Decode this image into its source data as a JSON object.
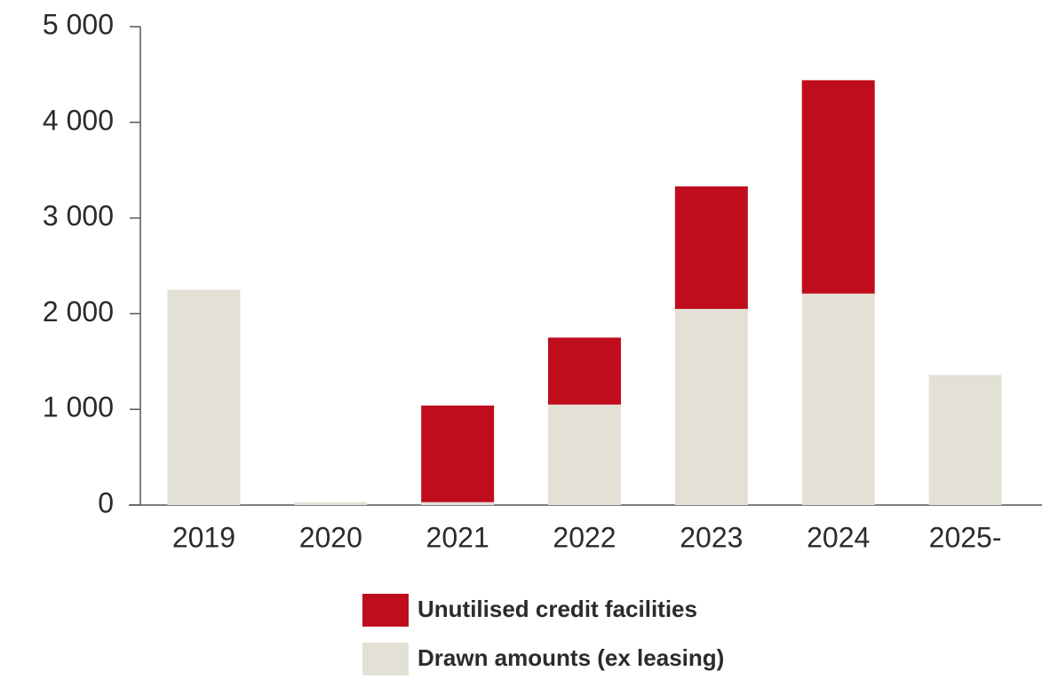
{
  "chart_data": {
    "type": "stacked_bar",
    "categories": [
      "2019",
      "2020",
      "2021",
      "2022",
      "2023",
      "2024",
      "2025-"
    ],
    "series": [
      {
        "name": "Drawn amounts (ex leasing)",
        "color": "#e3e1d5",
        "values": [
          2250,
          30,
          30,
          1050,
          2050,
          2210,
          1360
        ]
      },
      {
        "name": "Unutilised credit facilities",
        "color": "#c00d1e",
        "values": [
          0,
          0,
          1010,
          700,
          1280,
          2230,
          0
        ]
      }
    ],
    "ylim": [
      0,
      5000
    ],
    "yticks": [
      0,
      {
        "value": 1000,
        "label": "1 000"
      },
      {
        "value": 2000,
        "label": "2 000"
      },
      {
        "value": 3000,
        "label": "3 000"
      },
      {
        "value": 4000,
        "label": "4 000"
      },
      {
        "value": 5000,
        "label": "5 000"
      }
    ],
    "grid": false
  }
}
